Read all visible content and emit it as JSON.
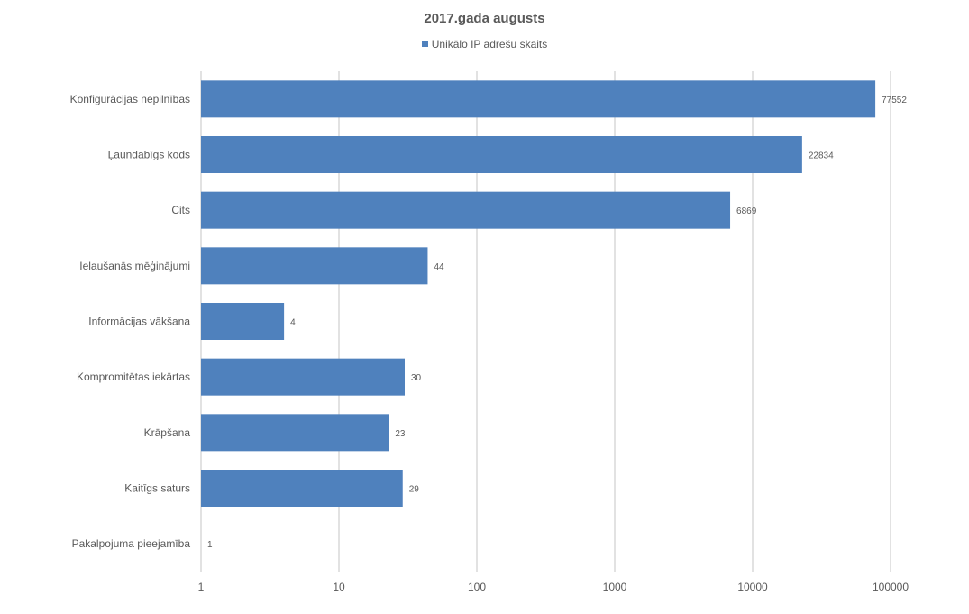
{
  "chart_data": {
    "type": "bar",
    "orientation": "horizontal",
    "title": "2017.gada augusts",
    "categories": [
      "Konfigurācijas nepilnības",
      "Ļaundabīgs kods",
      "Cits",
      "Ielaušanās mēģinājumi",
      "Informācijas vākšana",
      "Kompromitētas iekārtas",
      "Krāpšana",
      "Kaitīgs saturs",
      "Pakalpojuma pieejamība"
    ],
    "series": [
      {
        "name": "Unikālo IP adrešu skaits",
        "color": "#4f81bd",
        "values": [
          77552,
          22834,
          6869,
          44,
          4,
          30,
          23,
          29,
          1
        ]
      }
    ],
    "x_scale": "log",
    "xlim": [
      1,
      100000
    ],
    "x_ticks": [
      "1",
      "10",
      "100",
      "1000",
      "10000",
      "100000"
    ],
    "grid": "vertical",
    "legend_position": "top",
    "data_labels": true
  }
}
